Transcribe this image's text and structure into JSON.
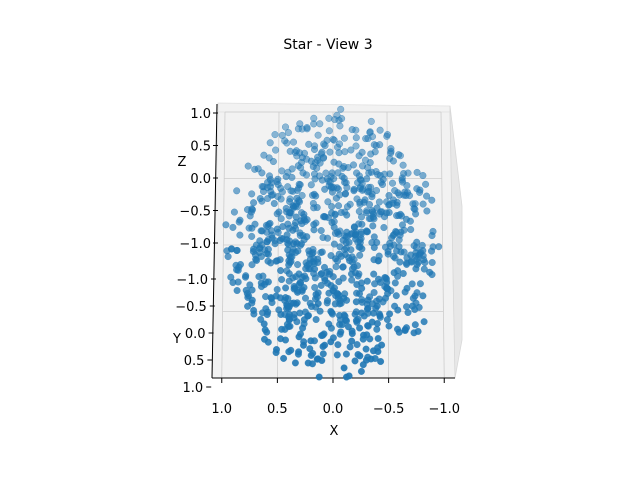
{
  "chart_data": {
    "type": "scatter",
    "projection": "3d",
    "title": "Star - View 3",
    "xlabel": "X",
    "ylabel": "Y",
    "zlabel": "Z",
    "xlim": [
      -1.0,
      1.0
    ],
    "ylim": [
      -1.0,
      1.0
    ],
    "zlim": [
      -1.0,
      1.0
    ],
    "x_ticks": [
      "1.0",
      "0.5",
      "0.0",
      "−0.5",
      "−1.0"
    ],
    "y_ticks": [
      "−1.0",
      "−0.5",
      "0.0",
      "0.5",
      "1.0"
    ],
    "z_ticks": [
      "1.0",
      "0.5",
      "0.0",
      "−0.5",
      "−1.0"
    ],
    "grid": true,
    "legend": "none",
    "marker_color": "#1f77b4",
    "pane_color": "#f2f2f2",
    "grid_color": "#cccccc",
    "series": [
      {
        "point_count": 900,
        "distribution": "points filling a sphere of radius ~1 (scattered sample)",
        "points": []
      }
    ]
  }
}
